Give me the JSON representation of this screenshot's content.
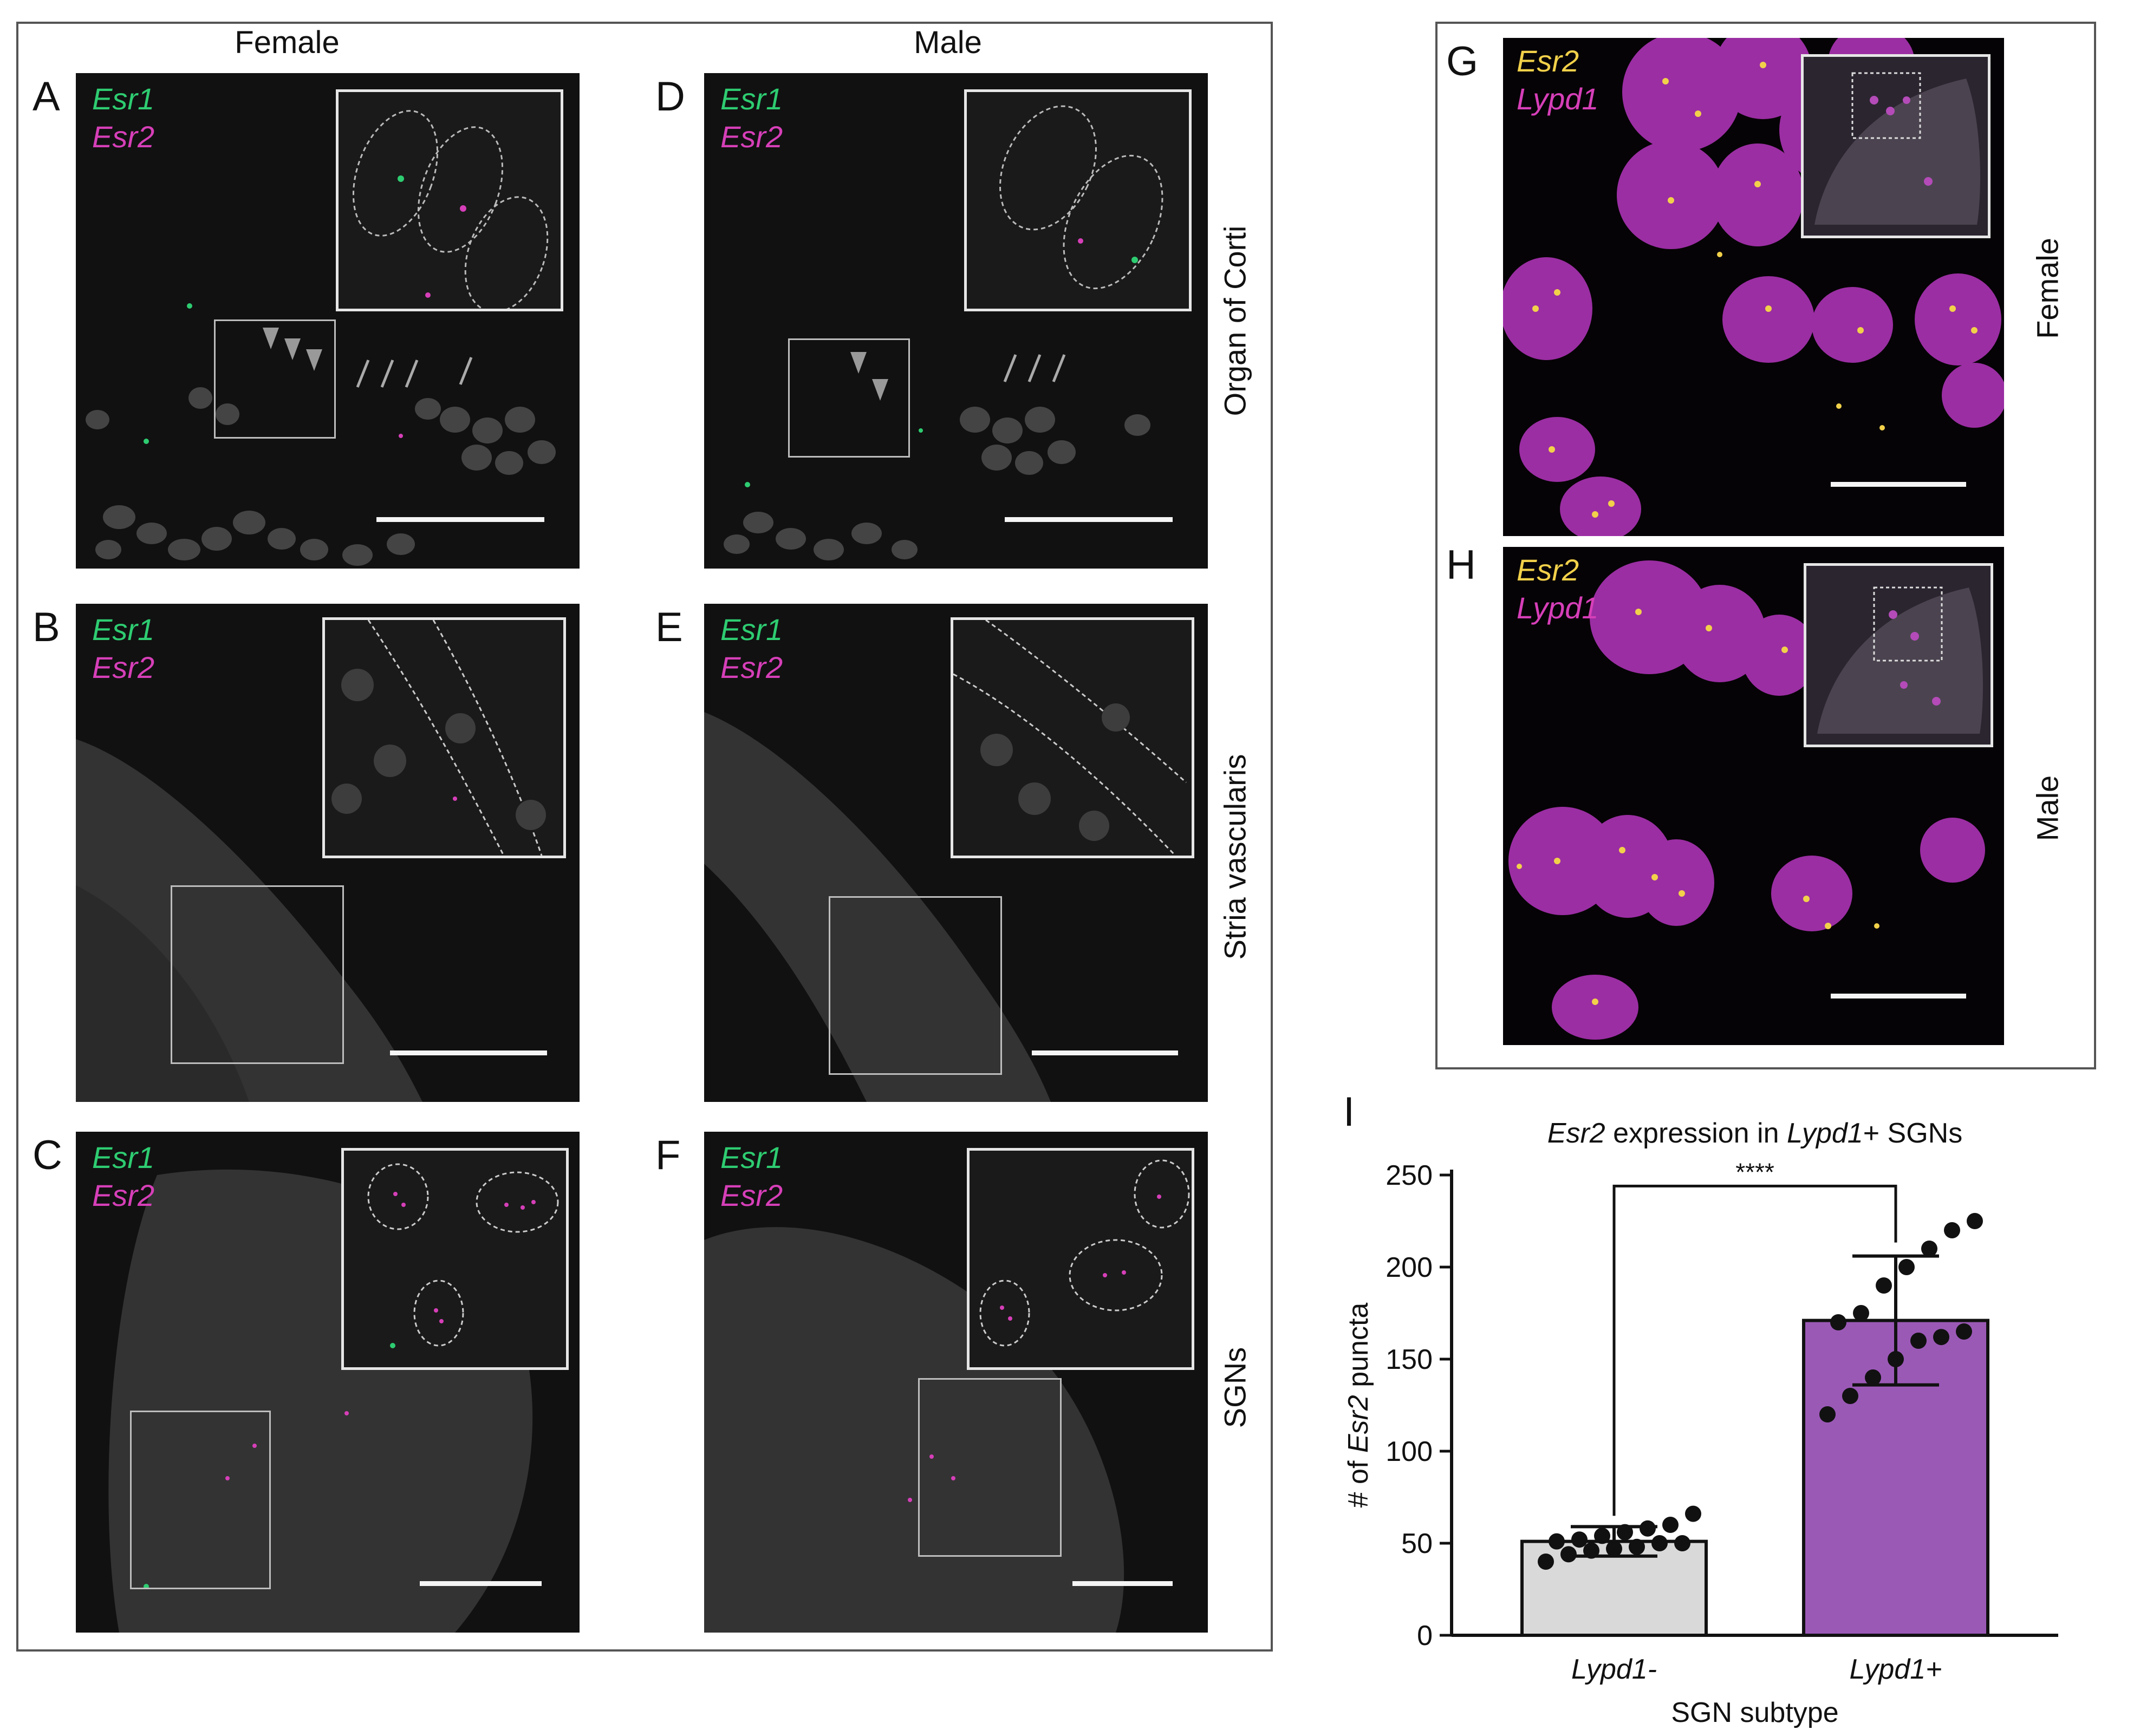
{
  "column_headers": {
    "female": "Female",
    "male": "Male"
  },
  "row_labels": {
    "organ_of_corti": "Organ of Corti",
    "stria_vascularis": "Stria vascularis",
    "sgns": "SGNs",
    "female": "Female",
    "male": "Male"
  },
  "panels": {
    "A": {
      "label": "A",
      "ch1": "Esr1",
      "ch2": "Esr2"
    },
    "B": {
      "label": "B",
      "ch1": "Esr1",
      "ch2": "Esr2"
    },
    "C": {
      "label": "C",
      "ch1": "Esr1",
      "ch2": "Esr2"
    },
    "D": {
      "label": "D",
      "ch1": "Esr1",
      "ch2": "Esr2"
    },
    "E": {
      "label": "E",
      "ch1": "Esr1",
      "ch2": "Esr2"
    },
    "F": {
      "label": "F",
      "ch1": "Esr1",
      "ch2": "Esr2"
    },
    "G": {
      "label": "G",
      "ch1": "Esr2",
      "ch2": "Lypd1"
    },
    "H": {
      "label": "H",
      "ch1": "Esr2",
      "ch2": "Lypd1"
    },
    "I": {
      "label": "I"
    }
  },
  "colors": {
    "esr1_green": "#2ecc71",
    "esr2_magenta": "#d63fb8",
    "esr2_yellow": "#f2d14a",
    "lypd1_magenta": "#c23bc4",
    "bar_lypd1_minus": "#d9d9d9",
    "bar_lypd1_plus": "#9b59b6"
  },
  "chart_data": {
    "type": "bar",
    "title_parts": [
      "Esr2",
      " expression in ",
      "Lypd1",
      "+ SGNs"
    ],
    "xlabel": "SGN subtype",
    "ylabel_parts": [
      "# of ",
      "Esr2",
      " puncta"
    ],
    "categories": [
      "Lypd1-",
      "Lypd1+"
    ],
    "values": [
      51,
      171
    ],
    "error": [
      8,
      35
    ],
    "ylim": [
      0,
      250
    ],
    "yticks": [
      0,
      50,
      100,
      150,
      200,
      250
    ],
    "significance": "****",
    "points": [
      [
        40,
        44,
        46,
        47,
        48,
        50,
        50,
        51,
        52,
        54,
        56,
        58,
        60,
        66
      ],
      [
        120,
        130,
        140,
        150,
        160,
        162,
        165,
        170,
        175,
        190,
        200,
        210,
        220,
        225
      ]
    ]
  }
}
